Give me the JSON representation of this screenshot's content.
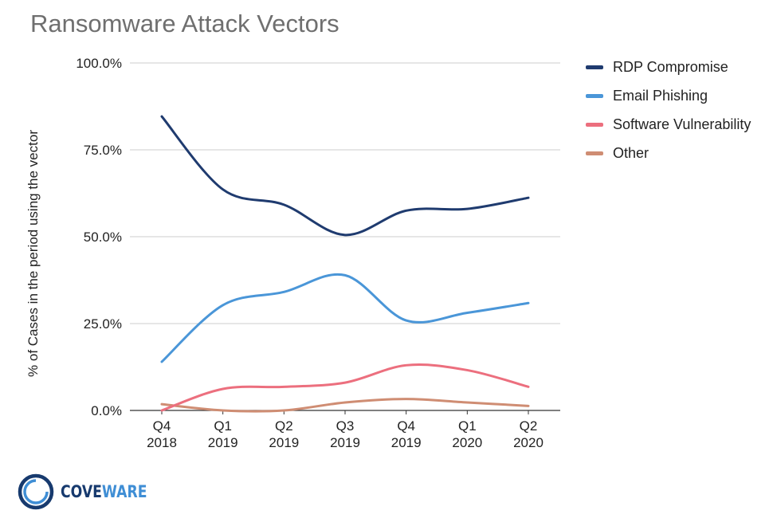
{
  "chart_data": {
    "type": "line",
    "title": "Ransomware Attack Vectors",
    "xlabel": "",
    "ylabel": "% of Cases in the period using the vector",
    "categories": [
      [
        "Q4",
        "2018"
      ],
      [
        "Q1",
        "2019"
      ],
      [
        "Q2",
        "2019"
      ],
      [
        "Q3",
        "2019"
      ],
      [
        "Q4",
        "2019"
      ],
      [
        "Q1",
        "2020"
      ],
      [
        "Q2",
        "2020"
      ]
    ],
    "ylim": [
      0,
      100
    ],
    "yticks": [
      "0.0%",
      "25.0%",
      "50.0%",
      "75.0%",
      "100.0%"
    ],
    "grid": true,
    "legend_position": "right",
    "series": [
      {
        "name": "RDP Compromise",
        "color": "#1f3b6f",
        "values": [
          84.6,
          63.6,
          59.2,
          50.5,
          57.5,
          58.0,
          61.2
        ]
      },
      {
        "name": "Email Phishing",
        "color": "#4a96d8",
        "values": [
          14.0,
          30.3,
          34.1,
          38.9,
          25.9,
          28.1,
          30.9
        ]
      },
      {
        "name": "Software Vulnerability",
        "color": "#ec6f7e",
        "values": [
          0.0,
          6.2,
          6.8,
          8.0,
          13.0,
          11.6,
          6.8
        ]
      },
      {
        "name": "Other",
        "color": "#cf8d73",
        "values": [
          1.8,
          0.0,
          0.0,
          2.3,
          3.3,
          2.3,
          1.3
        ]
      }
    ]
  },
  "logo": {
    "text_part1": "COVE",
    "text_part2": "WARE",
    "color_dark": "#173a6e",
    "color_light": "#3f8ed5"
  }
}
